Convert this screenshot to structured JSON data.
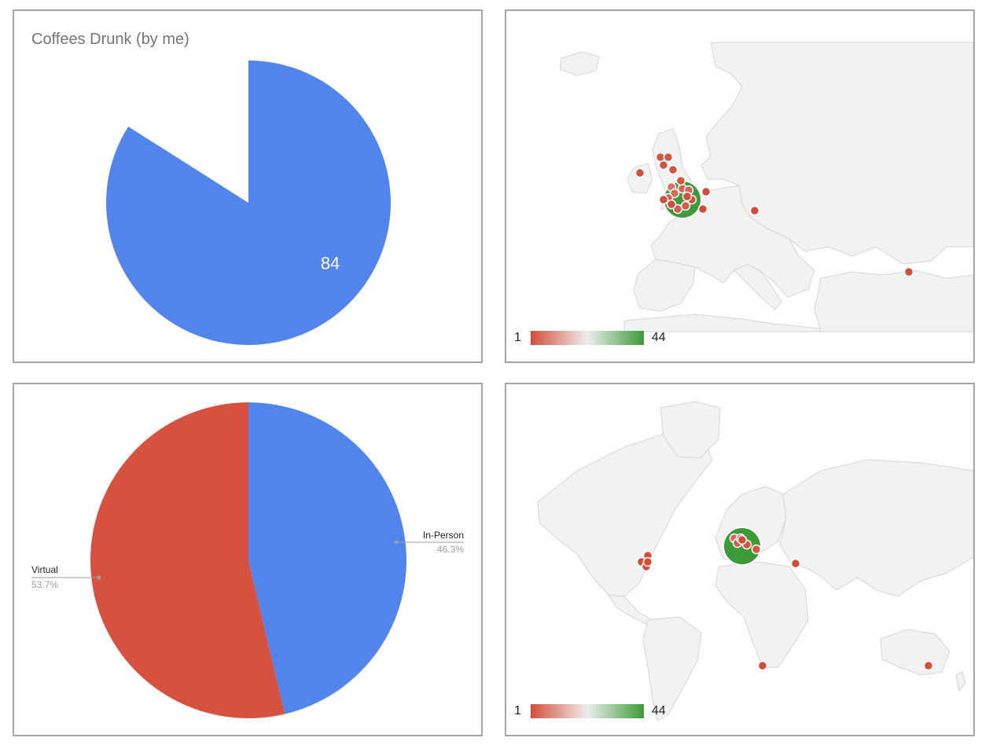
{
  "chart_data": [
    {
      "type": "pie",
      "title": "Coffees Drunk (by me)",
      "slices": [
        {
          "label": "",
          "value": 84,
          "value_label": "84",
          "color": "#5285ec"
        },
        {
          "label": "",
          "value": 16,
          "color": "#ffffff"
        }
      ]
    },
    {
      "type": "geo-bubble",
      "region": "Europe",
      "colorAxis": {
        "min": 1,
        "max": 44,
        "min_label": "1",
        "max_label": "44",
        "colors": [
          "#d14f3a",
          "#eeeeee",
          "#3c9a39"
        ]
      },
      "points": [
        {
          "value": 44
        },
        {
          "value": 6
        },
        {
          "value": 5
        },
        {
          "value": 4
        },
        {
          "value": 4
        },
        {
          "value": 3
        },
        {
          "value": 3
        },
        {
          "value": 3
        },
        {
          "value": 2
        },
        {
          "value": 2
        },
        {
          "value": 2
        },
        {
          "value": 2
        },
        {
          "value": 2
        },
        {
          "value": 1
        },
        {
          "value": 1
        },
        {
          "value": 1
        },
        {
          "value": 1
        },
        {
          "value": 1
        },
        {
          "value": 1
        },
        {
          "value": 1
        },
        {
          "value": 1
        },
        {
          "value": 1
        }
      ]
    },
    {
      "type": "pie",
      "title": "",
      "slices": [
        {
          "label": "In-Person",
          "value": 46.3,
          "percent_label": "46.3%",
          "color": "#5285ec"
        },
        {
          "label": "Virtual",
          "value": 53.7,
          "percent_label": "53.7%",
          "color": "#d75140"
        }
      ]
    },
    {
      "type": "geo-bubble",
      "region": "World",
      "colorAxis": {
        "min": 1,
        "max": 44,
        "min_label": "1",
        "max_label": "44",
        "colors": [
          "#d14f3a",
          "#eeeeee",
          "#3c9a39"
        ]
      },
      "points": [
        {
          "value": 44
        },
        {
          "value": 4
        },
        {
          "value": 3
        },
        {
          "value": 3
        },
        {
          "value": 2
        },
        {
          "value": 2
        },
        {
          "value": 1
        },
        {
          "value": 1
        },
        {
          "value": 1
        },
        {
          "value": 1
        },
        {
          "value": 1
        },
        {
          "value": 1
        },
        {
          "value": 1
        },
        {
          "value": 1
        }
      ]
    }
  ]
}
